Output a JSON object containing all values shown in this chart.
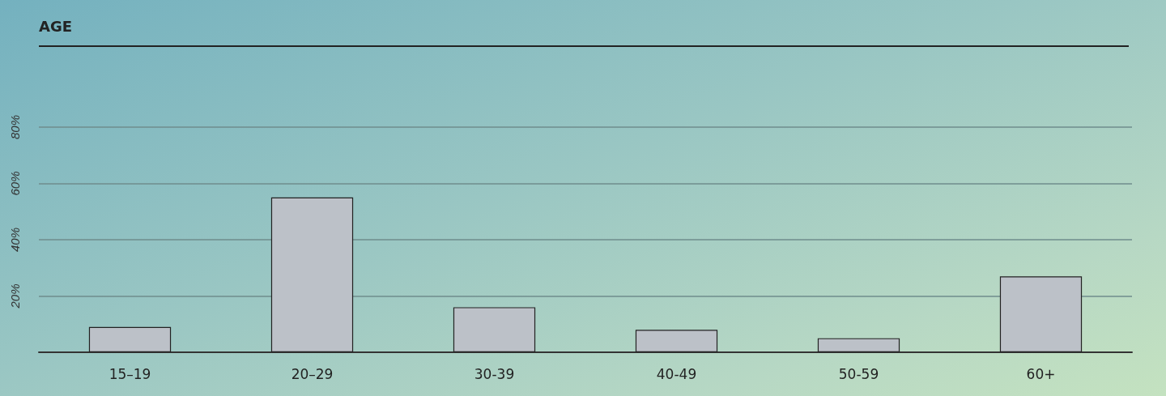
{
  "chart_data": {
    "type": "bar",
    "title": "AGE",
    "categories": [
      "15–19",
      "20–29",
      "30-39",
      "40-49",
      "50-59",
      "60+"
    ],
    "values": [
      9,
      55,
      16,
      8,
      5,
      27
    ],
    "color": "#bcc1c8",
    "ylim": [
      0,
      80
    ],
    "yticks": [
      {
        "value": 0,
        "label": null
      },
      {
        "value": 20,
        "label": "20%"
      },
      {
        "value": 40,
        "label": "40%"
      },
      {
        "value": 60,
        "label": "60%"
      },
      {
        "value": 80,
        "label": "80%"
      }
    ],
    "grid": "y"
  }
}
